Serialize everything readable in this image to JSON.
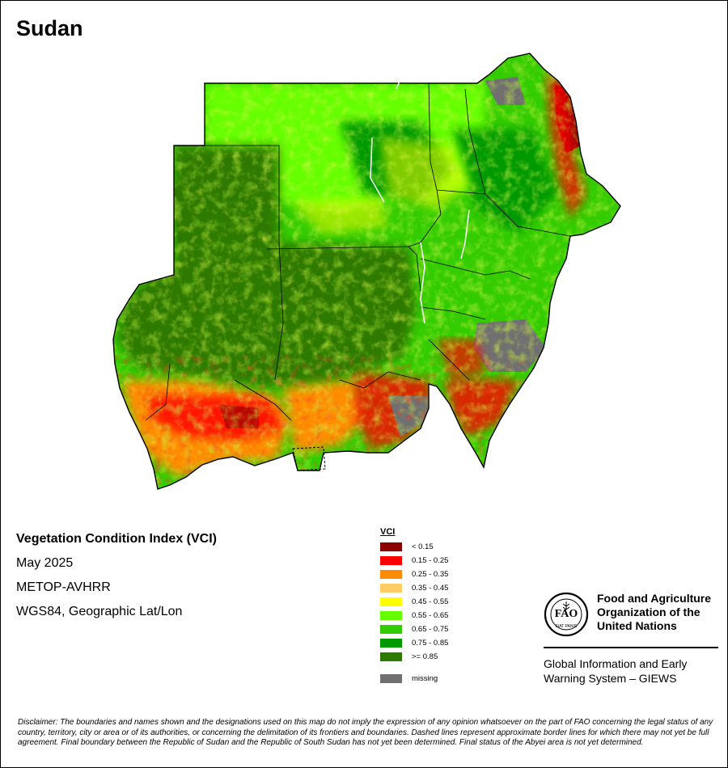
{
  "map": {
    "title": "Sudan",
    "info": {
      "index_name": "Vegetation Condition Index (VCI)",
      "date": "May 2025",
      "sensor": "METOP-AVHRR",
      "projection": "WGS84, Geographic Lat/Lon"
    },
    "legend": {
      "title": "VCI",
      "items": [
        {
          "label": "< 0.15",
          "color": "#8b0000"
        },
        {
          "label": "0.15 - 0.25",
          "color": "#ff0000"
        },
        {
          "label": "0.25 - 0.35",
          "color": "#ff8c00"
        },
        {
          "label": "0.35 - 0.45",
          "color": "#ffcc66"
        },
        {
          "label": "0.45 - 0.55",
          "color": "#ffff00"
        },
        {
          "label": "0.55 - 0.65",
          "color": "#66ff00"
        },
        {
          "label": "0.65 - 0.75",
          "color": "#33cc00"
        },
        {
          "label": "0.75 - 0.85",
          "color": "#009900"
        },
        {
          "label": ">= 0.85",
          "color": "#2d7a00"
        }
      ],
      "missing": {
        "label": "missing",
        "color": "#707070"
      }
    },
    "organization": {
      "name_line1": "Food and Agriculture",
      "name_line2": "Organization of the",
      "name_line3": "United Nations",
      "system_line1": "Global Information and Early",
      "system_line2": "Warning System – GIEWS",
      "logo_letters": "FAO",
      "logo_motto": "FIAT PANIS"
    },
    "disclaimer": "Disclaimer: The boundaries and names shown and the designations used on this map do not imply the expression of any opinion whatsoever on the part of FAO concerning the legal status of any country, territory, city or area or of its authorities, or concerning the delimitation of its frontiers and boundaries. Dashed lines represent approximate border lines for which there may not yet be full agreement.  Final boundary between the Republic of Sudan and the Republic of South Sudan has not yet been determined. Final status of the Abyei area is not yet determined."
  }
}
